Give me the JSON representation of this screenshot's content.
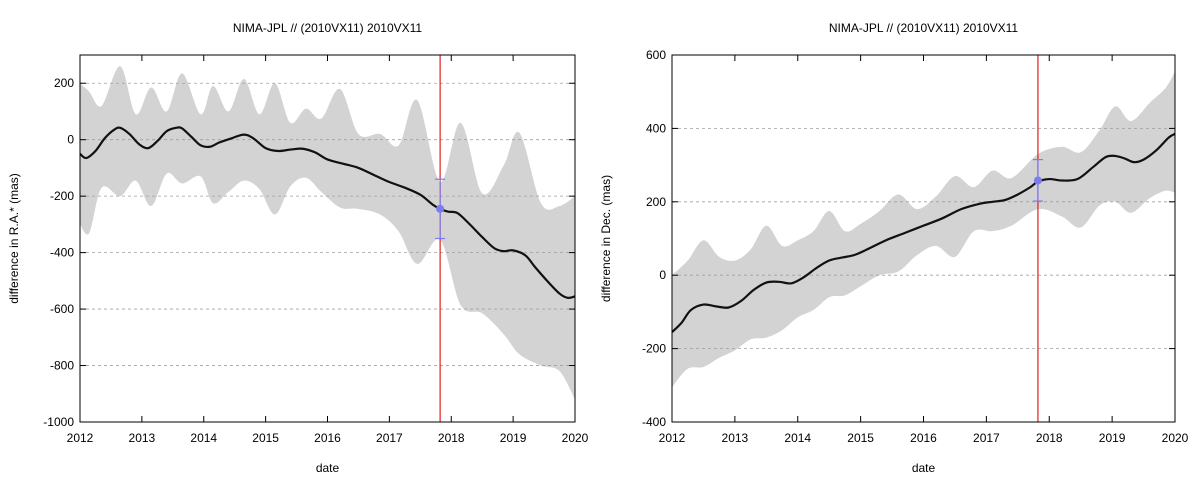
{
  "chart_data": [
    {
      "type": "line",
      "title": "NIMA-JPL // (2010VX11) 2010VX11",
      "xlabel": "date",
      "ylabel": "difference in R.A.* (mas)",
      "xlim": [
        2012,
        2020
      ],
      "ylim": [
        -1000,
        300
      ],
      "xticks": [
        2012,
        2013,
        2014,
        2015,
        2016,
        2017,
        2018,
        2019,
        2020
      ],
      "yticks": [
        -1000,
        -800,
        -600,
        -400,
        -200,
        0,
        200
      ],
      "grid": "horizontal-dashed",
      "series": [
        {
          "x": [
            2012.0,
            2012.1,
            2012.25,
            2012.4,
            2012.55,
            2012.65,
            2012.8,
            2012.95,
            2013.1,
            2013.25,
            2013.4,
            2013.55,
            2013.65,
            2013.8,
            2013.95,
            2014.1,
            2014.25,
            2014.45,
            2014.65,
            2014.8,
            2015.0,
            2015.2,
            2015.4,
            2015.6,
            2015.8,
            2016.0,
            2016.25,
            2016.5,
            2016.75,
            2017.0,
            2017.25,
            2017.5,
            2017.7,
            2017.82,
            2017.95,
            2018.1,
            2018.3,
            2018.5,
            2018.7,
            2018.85,
            2019.0,
            2019.2,
            2019.35,
            2019.55,
            2019.75,
            2019.88,
            2020.0
          ],
          "y": [
            -50,
            -65,
            -40,
            5,
            35,
            42,
            20,
            -15,
            -30,
            -5,
            30,
            42,
            40,
            10,
            -20,
            -25,
            -10,
            5,
            18,
            5,
            -30,
            -40,
            -35,
            -32,
            -45,
            -70,
            -85,
            -100,
            -125,
            -150,
            -170,
            -195,
            -230,
            -245,
            -255,
            -260,
            -300,
            -345,
            -385,
            -395,
            -392,
            -410,
            -450,
            -500,
            -545,
            -560,
            -555
          ]
        }
      ],
      "band": {
        "x": [
          2012.0,
          2012.15,
          2012.35,
          2012.65,
          2012.9,
          2013.15,
          2013.4,
          2013.65,
          2013.95,
          2014.15,
          2014.4,
          2014.65,
          2014.9,
          2015.15,
          2015.4,
          2015.65,
          2015.9,
          2016.2,
          2016.5,
          2016.85,
          2017.15,
          2017.45,
          2017.82,
          2018.15,
          2018.5,
          2018.85,
          2019.1,
          2019.45,
          2019.75,
          2020.0
        ],
        "upper": [
          200,
          170,
          120,
          260,
          90,
          185,
          100,
          235,
          90,
          190,
          100,
          215,
          90,
          200,
          60,
          110,
          75,
          180,
          20,
          20,
          -20,
          140,
          -150,
          60,
          -190,
          -90,
          25,
          -225,
          -235,
          -200
        ],
        "lower": [
          -300,
          -330,
          -170,
          -200,
          -145,
          -235,
          -120,
          -155,
          -130,
          -225,
          -185,
          -145,
          -175,
          -265,
          -165,
          -135,
          -185,
          -240,
          -245,
          -265,
          -325,
          -440,
          -355,
          -585,
          -615,
          -690,
          -760,
          -800,
          -820,
          -920
        ]
      },
      "marker": {
        "x": 2017.82,
        "y": -245,
        "err_low": -350,
        "err_high": -140,
        "color": "#7b7bf3"
      },
      "vline": {
        "x": 2017.82,
        "color": "#e02020"
      }
    },
    {
      "type": "line",
      "title": "NIMA-JPL // (2010VX11) 2010VX11",
      "xlabel": "date",
      "ylabel": "difference in Dec. (mas)",
      "xlim": [
        2012,
        2020
      ],
      "ylim": [
        -400,
        600
      ],
      "xticks": [
        2012,
        2013,
        2014,
        2015,
        2016,
        2017,
        2018,
        2019,
        2020
      ],
      "yticks": [
        -400,
        -200,
        0,
        200,
        400,
        600
      ],
      "grid": "horizontal-dashed",
      "series": [
        {
          "x": [
            2012.0,
            2012.15,
            2012.3,
            2012.5,
            2012.7,
            2012.9,
            2013.1,
            2013.3,
            2013.5,
            2013.7,
            2013.9,
            2014.1,
            2014.3,
            2014.5,
            2014.7,
            2014.9,
            2015.1,
            2015.4,
            2015.7,
            2016.0,
            2016.3,
            2016.6,
            2016.9,
            2017.1,
            2017.3,
            2017.5,
            2017.7,
            2017.82,
            2018.0,
            2018.2,
            2018.45,
            2018.7,
            2018.9,
            2019.05,
            2019.2,
            2019.35,
            2019.5,
            2019.7,
            2019.9,
            2020.0
          ],
          "y": [
            -155,
            -130,
            -95,
            -80,
            -85,
            -88,
            -70,
            -40,
            -20,
            -18,
            -22,
            -5,
            20,
            40,
            48,
            55,
            70,
            95,
            115,
            135,
            155,
            180,
            195,
            200,
            205,
            220,
            240,
            255,
            262,
            258,
            262,
            295,
            322,
            325,
            318,
            308,
            315,
            340,
            375,
            385
          ]
        }
      ],
      "band": {
        "x": [
          2012.0,
          2012.25,
          2012.5,
          2012.75,
          2013.0,
          2013.25,
          2013.5,
          2013.75,
          2014.0,
          2014.25,
          2014.5,
          2014.75,
          2015.0,
          2015.3,
          2015.6,
          2015.9,
          2016.2,
          2016.5,
          2016.8,
          2017.1,
          2017.4,
          2017.82,
          2018.2,
          2018.5,
          2018.8,
          2019.05,
          2019.3,
          2019.6,
          2019.85,
          2020.0
        ],
        "upper": [
          0,
          40,
          95,
          50,
          40,
          70,
          135,
          80,
          95,
          120,
          175,
          120,
          140,
          175,
          220,
          180,
          215,
          270,
          240,
          285,
          265,
          330,
          350,
          335,
          395,
          460,
          420,
          470,
          510,
          555
        ],
        "lower": [
          -305,
          -255,
          -250,
          -225,
          -205,
          -175,
          -170,
          -150,
          -115,
          -95,
          -60,
          -55,
          -30,
          0,
          10,
          55,
          80,
          50,
          120,
          120,
          135,
          180,
          160,
          130,
          190,
          200,
          170,
          210,
          230,
          225
        ]
      },
      "marker": {
        "x": 2017.82,
        "y": 258,
        "err_low": 202,
        "err_high": 315,
        "color": "#7b7bf3"
      },
      "vline": {
        "x": 2017.82,
        "color": "#e02020"
      }
    }
  ]
}
